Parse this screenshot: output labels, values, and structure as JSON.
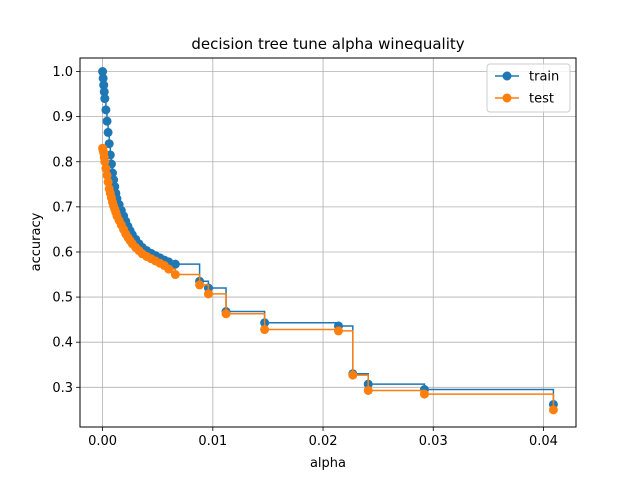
{
  "chart_data": {
    "type": "line",
    "title": "decision tree tune alpha winequality",
    "xlabel": "alpha",
    "ylabel": "accuracy",
    "xlim": [
      -0.00205,
      0.04295
    ],
    "ylim": [
      0.212,
      1.03
    ],
    "xticks": [
      0.0,
      0.01,
      0.02,
      0.03,
      0.04
    ],
    "xtick_labels": [
      "0.00",
      "0.01",
      "0.02",
      "0.03",
      "0.04"
    ],
    "yticks": [
      0.3,
      0.4,
      0.5,
      0.6,
      0.7,
      0.8,
      0.9,
      1.0
    ],
    "ytick_labels": [
      "0.3",
      "0.4",
      "0.5",
      "0.6",
      "0.7",
      "0.8",
      "0.9",
      "1.0"
    ],
    "grid": true,
    "legend_position": "top-right",
    "drawstyle": "steps-post",
    "series": [
      {
        "name": "train",
        "color": "#1f77b4",
        "x": [
          0.0,
          5e-05,
          0.0001,
          0.00015,
          0.0002,
          0.0003,
          0.0004,
          0.0005,
          0.0006,
          0.0007,
          0.0008,
          0.0009,
          0.001,
          0.0011,
          0.0012,
          0.0013,
          0.0015,
          0.0017,
          0.0019,
          0.0021,
          0.0023,
          0.0025,
          0.0027,
          0.003,
          0.0033,
          0.0036,
          0.004,
          0.0044,
          0.0048,
          0.0052,
          0.0056,
          0.006,
          0.0066,
          0.0088,
          0.0096,
          0.0112,
          0.0147,
          0.0214,
          0.0227,
          0.0241,
          0.0292,
          0.0409
        ],
        "y": [
          1.0,
          0.985,
          0.97,
          0.955,
          0.94,
          0.915,
          0.89,
          0.865,
          0.84,
          0.815,
          0.795,
          0.775,
          0.76,
          0.745,
          0.73,
          0.718,
          0.705,
          0.692,
          0.68,
          0.668,
          0.657,
          0.647,
          0.638,
          0.628,
          0.618,
          0.61,
          0.603,
          0.597,
          0.592,
          0.587,
          0.582,
          0.578,
          0.573,
          0.535,
          0.52,
          0.468,
          0.443,
          0.436,
          0.33,
          0.307,
          0.295,
          0.262
        ]
      },
      {
        "name": "test",
        "color": "#ff7f0e",
        "x": [
          0.0,
          5e-05,
          0.0001,
          0.00015,
          0.0002,
          0.0003,
          0.0004,
          0.0005,
          0.0006,
          0.0007,
          0.0008,
          0.0009,
          0.001,
          0.0011,
          0.0012,
          0.0013,
          0.0015,
          0.0017,
          0.0019,
          0.0021,
          0.0023,
          0.0025,
          0.0027,
          0.003,
          0.0033,
          0.0036,
          0.004,
          0.0044,
          0.0048,
          0.0052,
          0.0056,
          0.006,
          0.0066,
          0.0088,
          0.0096,
          0.0112,
          0.0147,
          0.0214,
          0.0227,
          0.0241,
          0.0292,
          0.0409
        ],
        "y": [
          0.83,
          0.825,
          0.82,
          0.81,
          0.8,
          0.785,
          0.77,
          0.755,
          0.74,
          0.73,
          0.72,
          0.71,
          0.702,
          0.695,
          0.688,
          0.68,
          0.67,
          0.66,
          0.65,
          0.64,
          0.632,
          0.625,
          0.618,
          0.61,
          0.603,
          0.596,
          0.59,
          0.585,
          0.58,
          0.575,
          0.57,
          0.562,
          0.55,
          0.527,
          0.507,
          0.463,
          0.428,
          0.425,
          0.327,
          0.293,
          0.285,
          0.25
        ]
      }
    ]
  }
}
